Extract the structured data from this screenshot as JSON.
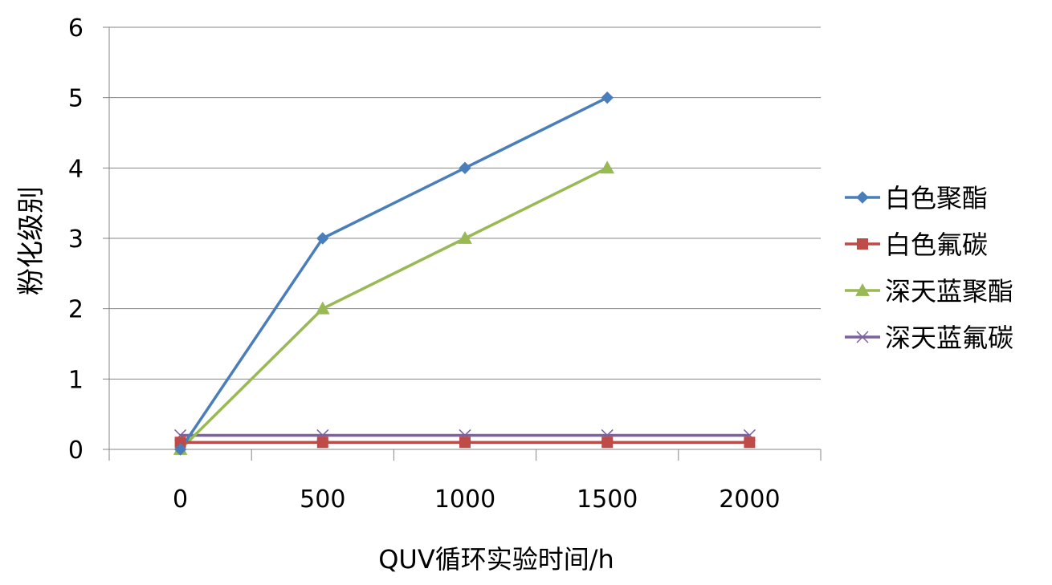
{
  "chart_data": {
    "type": "line",
    "title": "",
    "xlabel": "QUV循环实验时间/h",
    "ylabel": "粉化级别",
    "categories": [
      "0",
      "500",
      "1000",
      "1500",
      "2000"
    ],
    "ylim": [
      0,
      6
    ],
    "yticks": [
      "0",
      "1",
      "2",
      "3",
      "4",
      "5",
      "6"
    ],
    "grid": "horizontal",
    "legend_position": "right",
    "series": [
      {
        "name": "白色聚酯",
        "values": [
          0,
          3,
          4,
          5,
          null
        ],
        "color": "#4A7EBB",
        "marker": "diamond"
      },
      {
        "name": "白色氟碳",
        "values": [
          0.1,
          0.1,
          0.1,
          0.1,
          0.1
        ],
        "color": "#BE4B48",
        "marker": "square"
      },
      {
        "name": "深天蓝聚酯",
        "values": [
          0,
          2,
          3,
          4,
          null
        ],
        "color": "#98B954",
        "marker": "triangle"
      },
      {
        "name": "深天蓝氟碳",
        "values": [
          0.2,
          0.2,
          0.2,
          0.2,
          0.2
        ],
        "color": "#7D60A0",
        "marker": "x"
      }
    ]
  }
}
